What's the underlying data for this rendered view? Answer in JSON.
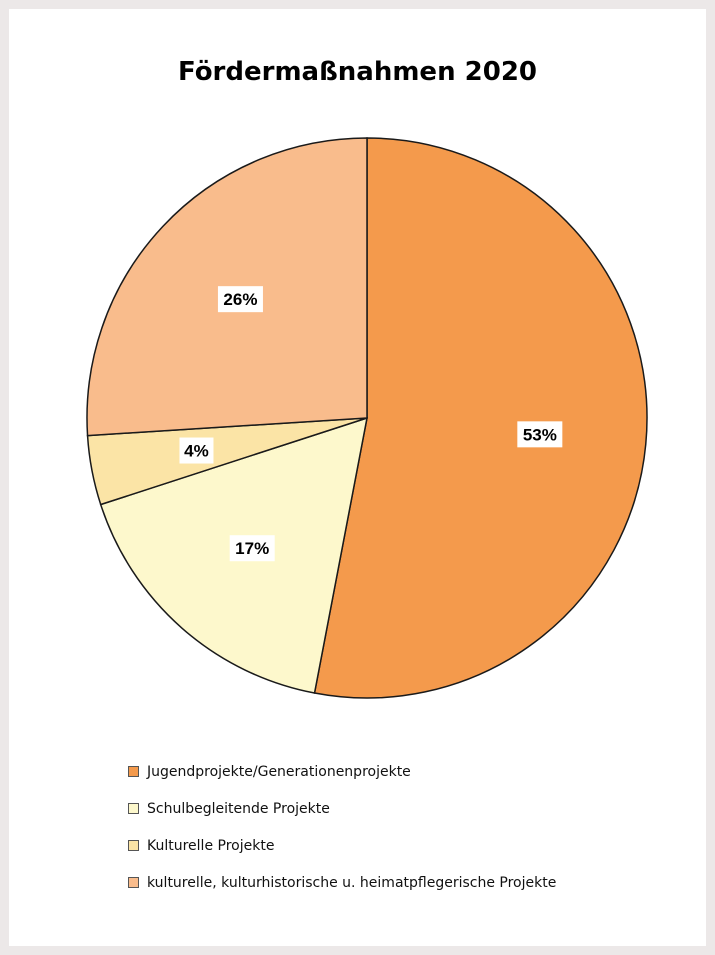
{
  "chart_data": {
    "type": "pie",
    "title": "Fördermaßnahmen 2020",
    "slices": [
      {
        "name": "Jugendprojekte/Generationenprojekte",
        "value": 53,
        "label": "53%",
        "color": "#f49a4c"
      },
      {
        "name": "Schulbegleitende Projekte",
        "value": 17,
        "label": "17%",
        "color": "#fdf8cc"
      },
      {
        "name": "Kulturelle Projekte",
        "value": 4,
        "label": "4%",
        "color": "#fbe4a6"
      },
      {
        "name": "kulturelle, kulturhistorische u. heimatpflegerische Projekte",
        "value": 26,
        "label": "26%",
        "color": "#f9bc8c"
      }
    ],
    "start_angle": "12 o'clock",
    "direction": "clockwise",
    "legend_position": "bottom"
  }
}
